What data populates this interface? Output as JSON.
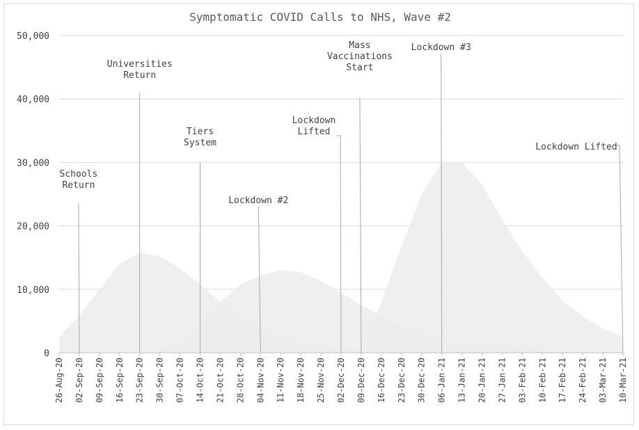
{
  "chart_data": {
    "type": "area",
    "title": "Symptomatic COVID Calls to NHS, Wave #2",
    "xlabel": "",
    "ylabel": "",
    "ylim": [
      0,
      50000
    ],
    "yticks": [
      0,
      10000,
      20000,
      30000,
      40000,
      50000
    ],
    "ytick_labels": [
      "0",
      "10,000",
      "20,000",
      "30,000",
      "40,000",
      "50,000"
    ],
    "grid": "horizontal",
    "legend": "none",
    "fill_color": "#ececec",
    "categories": [
      "26-Aug-20",
      "02-Sep-20",
      "09-Sep-20",
      "16-Sep-20",
      "23-Sep-20",
      "30-Sep-20",
      "07-Oct-20",
      "14-Oct-20",
      "21-Oct-20",
      "28-Oct-20",
      "04-Nov-20",
      "11-Nov-20",
      "18-Nov-20",
      "25-Nov-20",
      "02-Dec-20",
      "09-Dec-20",
      "16-Dec-20",
      "23-Dec-20",
      "30-Dec-20",
      "06-Jan-21",
      "13-Jan-21",
      "20-Jan-21",
      "27-Jan-21",
      "03-Feb-21",
      "10-Feb-21",
      "17-Feb-21",
      "24-Feb-21",
      "03-Mar-21",
      "10-Mar-21"
    ],
    "series": [
      {
        "values": [
          2500,
          5800,
          10000,
          14000,
          15800,
          15200,
          13300,
          10800,
          8000,
          5800,
          4000,
          2800,
          1900,
          1300,
          900,
          600,
          300,
          200,
          100,
          0,
          0,
          0,
          0,
          0,
          0,
          0,
          0,
          0,
          0
        ]
      },
      {
        "values": [
          0,
          0,
          0,
          0,
          0,
          500,
          1800,
          4500,
          8000,
          10800,
          12200,
          13000,
          12700,
          11300,
          9500,
          7500,
          5800,
          4300,
          3200,
          2300,
          1700,
          1200,
          1000,
          800,
          500,
          300,
          0,
          0,
          0
        ]
      },
      {
        "values": [
          0,
          0,
          0,
          0,
          0,
          0,
          0,
          0,
          0,
          0,
          0,
          0,
          0,
          0,
          0,
          0,
          8000,
          16800,
          25000,
          30000,
          30000,
          26500,
          21000,
          16000,
          11800,
          8200,
          5800,
          3800,
          2500
        ]
      }
    ],
    "annotations": [
      {
        "lines": [
          "Schools",
          "Return"
        ],
        "category": "02-Sep-20"
      },
      {
        "lines": [
          "Universities",
          "Return"
        ],
        "category": "23-Sep-20"
      },
      {
        "lines": [
          "Tiers",
          "System"
        ],
        "category": "14-Oct-20"
      },
      {
        "lines": [
          "Lockdown #2"
        ],
        "category": "04-Nov-20"
      },
      {
        "lines": [
          "Lockdown",
          "Lifted"
        ],
        "category": "02-Dec-20"
      },
      {
        "lines": [
          "Mass",
          "Vaccinations",
          "Start"
        ],
        "category": "09-Dec-20"
      },
      {
        "lines": [
          "Lockdown #3"
        ],
        "category": "06-Jan-21"
      },
      {
        "lines": [
          "Lockdown Lifted"
        ],
        "category": "10-Mar-21"
      }
    ]
  }
}
